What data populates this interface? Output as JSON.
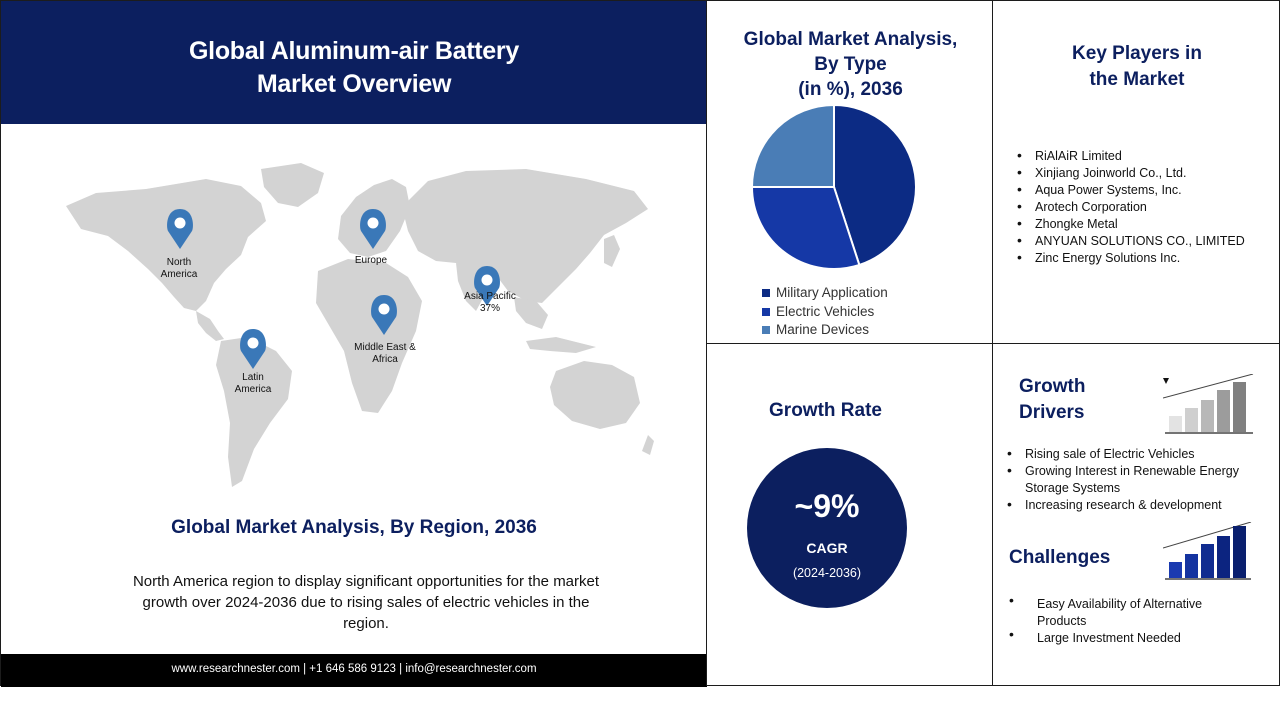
{
  "header": {
    "title_line1": "Global Aluminum-air Battery",
    "title_line2": "Market Overview"
  },
  "map": {
    "labels": {
      "north_america": [
        "North",
        "America"
      ],
      "europe": [
        "Europe"
      ],
      "asia_pacific": [
        "Asia Pacific",
        "37%"
      ],
      "middle_east_africa": [
        "Middle East &",
        "Africa"
      ],
      "latin_america": [
        "Latin",
        "America"
      ]
    },
    "land_color": "#d3d3d3",
    "pin_color": "#3a78b8"
  },
  "region": {
    "title": "Global Market Analysis, By Region, 2036",
    "description": "North America region to display significant opportunities for the market growth over 2024-2036  due to rising sales of electric vehicles in the region."
  },
  "footer": {
    "contact": "www.researchnester.com  | +1 646 586 9123 | info@researchnester.com"
  },
  "type_analysis": {
    "title_line1": "Global Market Analysis,",
    "title_line2": "By Type",
    "title_line3": "(in %), 2036"
  },
  "chart_data": {
    "type": "pie",
    "title": "Global Market Analysis, By Type (in %), 2036",
    "categories": [
      "Military Application",
      "Electric Vehicles",
      "Marine Devices"
    ],
    "values": [
      45,
      30,
      25
    ],
    "colors": [
      "#0c2b84",
      "#1538a6",
      "#4a7db6"
    ],
    "legend_position": "bottom"
  },
  "key_players": {
    "title_line1": "Key Players in",
    "title_line2": "the Market",
    "items": [
      "RiAlAiR Limited",
      "Xinjiang Joinworld Co., Ltd.",
      "Aqua Power Systems, Inc.",
      "Arotech Corporation",
      "Zhongke Metal",
      "ANYUAN SOLUTIONS CO., LIMITED",
      "Zinc Energy Solutions Inc."
    ]
  },
  "growth": {
    "title": "Growth Rate",
    "value": "~9%",
    "label": "CAGR",
    "period": "(2024-2036)"
  },
  "drivers": {
    "title_line1": "Growth",
    "title_line2": "Drivers",
    "items": [
      "Rising sale of Electric Vehicles",
      "Growing Interest in Renewable Energy Storage Systems",
      "Increasing research & development"
    ]
  },
  "challenges": {
    "title": "Challenges",
    "items": [
      "Easy Availability of Alternative Products",
      "Large Investment Needed"
    ]
  },
  "colors": {
    "navy": "#0c1f5f",
    "footer": "#000000"
  }
}
